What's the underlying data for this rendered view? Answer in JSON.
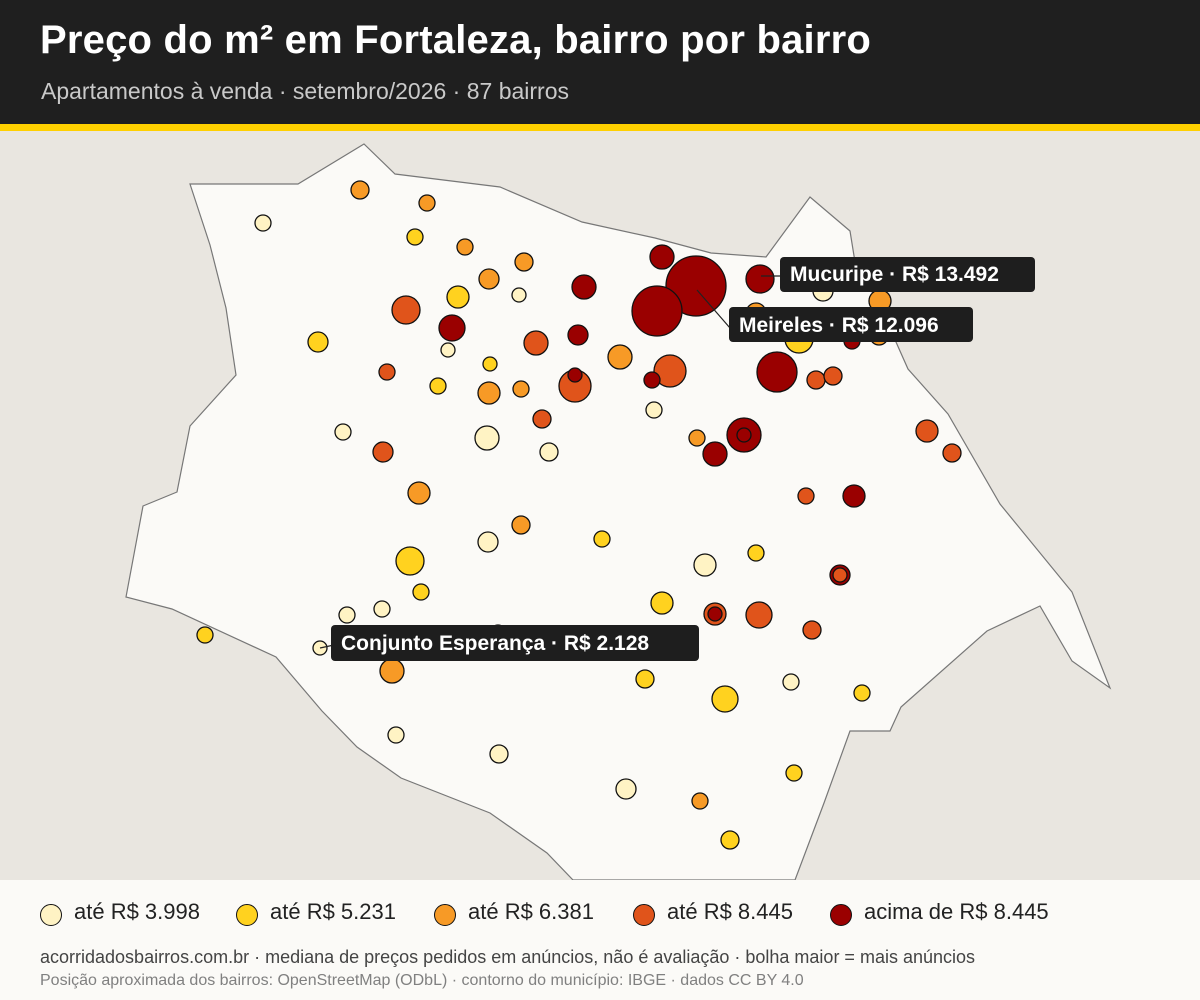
{
  "header": {
    "title": "Preço do m² em Fortaleza, bairro por bairro",
    "subtitle": "Apartamentos à venda · setembro/2026 · 87 bairros"
  },
  "colors": {
    "header_bg": "#1f1f1f",
    "accent_stripe": "#ffd000",
    "city_fill": "#fbfaf7",
    "outside_fill": "#e9e6e0",
    "class_colors": [
      "#fff3c4",
      "#ffd21f",
      "#f79a26",
      "#e0541b",
      "#9a0000"
    ]
  },
  "legend": {
    "items": [
      {
        "label": "até R$ 3.998",
        "class": 0
      },
      {
        "label": "até R$ 5.231",
        "class": 1
      },
      {
        "label": "até R$ 6.381",
        "class": 2
      },
      {
        "label": "até R$ 8.445",
        "class": 3
      },
      {
        "label": "acima de R$ 8.445",
        "class": 4
      }
    ]
  },
  "callouts": [
    {
      "text": "Mucuripe · R$ 13.492"
    },
    {
      "text": "Meireles · R$ 12.096"
    },
    {
      "text": "Conjunto Esperança · R$ 2.128"
    }
  ],
  "footer": {
    "source": "acorridadosbairros.com.br · mediana de preços pedidos em anúncios, não é avaliação · bolha maior = mais anúncios",
    "attribution": "Posição aproximada dos bairros: OpenStreetMap (ODbL) · contorno do município: IBGE · dados CC BY 4.0"
  }
}
